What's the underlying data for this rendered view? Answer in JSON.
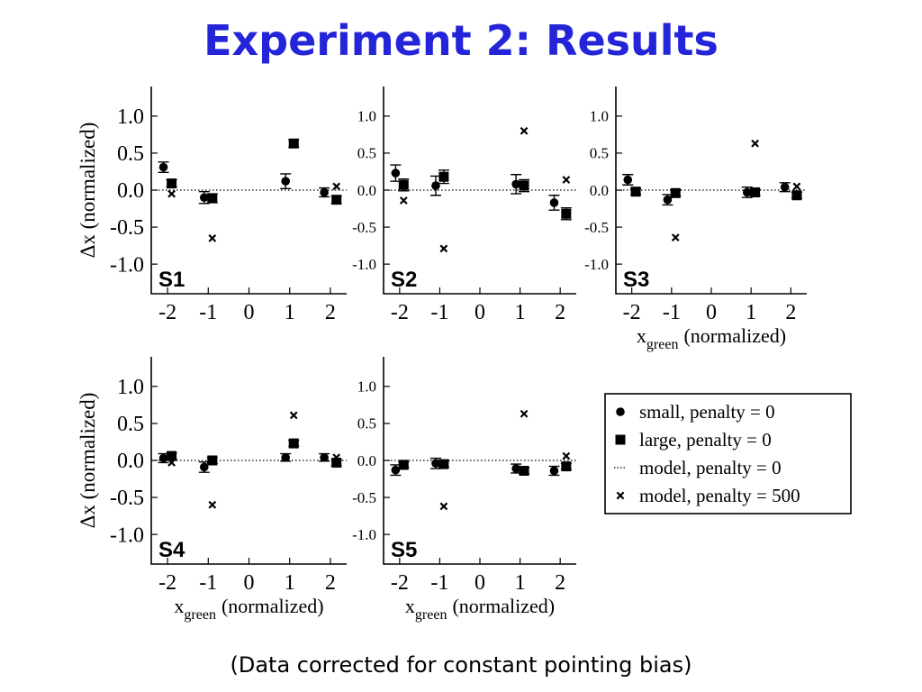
{
  "slide": {
    "title": "Experiment 2: Results",
    "caption": "(Data corrected for constant pointing bias)"
  },
  "colors": {
    "title": "#2424d8",
    "ink": "#000000",
    "background": "#ffffff"
  },
  "legend": {
    "placement": "right, second row",
    "entries": [
      {
        "marker": "circle",
        "label": "small, penalty = 0"
      },
      {
        "marker": "square",
        "label": "large, penalty = 0"
      },
      {
        "marker": "dotted-line",
        "label": "model, penalty = 0"
      },
      {
        "marker": "cross",
        "label": "model, penalty = 500"
      }
    ]
  },
  "chart_data": [
    {
      "type": "scatter",
      "panel_label": "S1",
      "ylabel": "Δx (normalized)",
      "xlabel": "",
      "xlim": [
        -2.4,
        2.4
      ],
      "ylim": [
        -1.4,
        1.4
      ],
      "xticks": [
        "-2",
        "-1",
        "0",
        "1",
        "2"
      ],
      "yticks": [
        "1.0",
        "0.5",
        "0.0",
        "-0.5",
        "-1.0"
      ],
      "series": [
        {
          "name": "small, penalty = 0",
          "marker": "circle",
          "x": [
            -2.1,
            -1.1,
            0.9,
            1.85
          ],
          "y": [
            0.31,
            -0.1,
            0.12,
            -0.03
          ],
          "err": [
            0.07,
            0.08,
            0.1,
            0.06
          ]
        },
        {
          "name": "large, penalty = 0",
          "marker": "square",
          "x": [
            -1.9,
            -0.9,
            1.1,
            2.15
          ],
          "y": [
            0.09,
            -0.11,
            0.63,
            -0.13
          ],
          "err": [
            0.05,
            0.06,
            0.05,
            0.05
          ]
        },
        {
          "name": "model, penalty = 0",
          "marker": "dotted-line",
          "y": 0.0
        },
        {
          "name": "model, penalty = 500",
          "marker": "cross",
          "x": [
            -1.9,
            -0.9,
            1.1,
            2.15
          ],
          "y": [
            -0.05,
            -0.65,
            0.64,
            0.05
          ]
        }
      ]
    },
    {
      "type": "scatter",
      "panel_label": "S2",
      "ylabel": "",
      "xlabel": "",
      "xlim": [
        -2.4,
        2.4
      ],
      "ylim": [
        -1.4,
        1.4
      ],
      "xticks": [
        "-2",
        "-1",
        "0",
        "1",
        "2"
      ],
      "yticks": [
        "1.0",
        "0.5",
        "0.0",
        "-0.5",
        "-1.0"
      ],
      "series": [
        {
          "name": "small, penalty = 0",
          "marker": "circle",
          "x": [
            -2.1,
            -1.1,
            0.9,
            1.85
          ],
          "y": [
            0.23,
            0.06,
            0.08,
            -0.17
          ],
          "err": [
            0.11,
            0.13,
            0.13,
            0.1
          ]
        },
        {
          "name": "large, penalty = 0",
          "marker": "square",
          "x": [
            -1.9,
            -0.9,
            1.1,
            2.15
          ],
          "y": [
            0.07,
            0.18,
            0.06,
            -0.32
          ],
          "err": [
            0.08,
            0.09,
            0.08,
            0.08
          ]
        },
        {
          "name": "model, penalty = 0",
          "marker": "dotted-line",
          "y": 0.0
        },
        {
          "name": "model, penalty = 500",
          "marker": "cross",
          "x": [
            -1.9,
            -0.9,
            1.1,
            2.15
          ],
          "y": [
            -0.14,
            -0.79,
            0.8,
            0.14
          ]
        }
      ]
    },
    {
      "type": "scatter",
      "panel_label": "S3",
      "ylabel": "",
      "xlabel": "xgreen (normalized)",
      "xlabel_main": "x",
      "xlabel_sub": "green",
      "xlabel_rest": "(normalized)",
      "xlim": [
        -2.4,
        2.4
      ],
      "ylim": [
        -1.4,
        1.4
      ],
      "xticks": [
        "-2",
        "-1",
        "0",
        "1",
        "2"
      ],
      "yticks": [
        "1.0",
        "0.5",
        "0.0",
        "-0.5",
        "-1.0"
      ],
      "series": [
        {
          "name": "small, penalty = 0",
          "marker": "circle",
          "x": [
            -2.1,
            -1.1,
            0.9,
            1.85
          ],
          "y": [
            0.14,
            -0.13,
            -0.03,
            0.04
          ],
          "err": [
            0.07,
            0.07,
            0.07,
            0.06
          ]
        },
        {
          "name": "large, penalty = 0",
          "marker": "square",
          "x": [
            -1.9,
            -0.9,
            1.1,
            2.15
          ],
          "y": [
            -0.02,
            -0.04,
            -0.03,
            -0.07
          ],
          "err": [
            0.04,
            0.04,
            0.04,
            0.04
          ]
        },
        {
          "name": "model, penalty = 0",
          "marker": "dotted-line",
          "y": 0.0
        },
        {
          "name": "model, penalty = 500",
          "marker": "cross",
          "x": [
            -1.9,
            -0.9,
            1.1,
            2.15
          ],
          "y": [
            -0.04,
            -0.64,
            0.63,
            0.05
          ]
        }
      ]
    },
    {
      "type": "scatter",
      "panel_label": "S4",
      "ylabel": "Δx (normalized)",
      "xlabel": "xgreen (normalized)",
      "xlabel_main": "x",
      "xlabel_sub": "green",
      "xlabel_rest": "(normalized)",
      "xlim": [
        -2.4,
        2.4
      ],
      "ylim": [
        -1.4,
        1.4
      ],
      "xticks": [
        "-2",
        "-1",
        "0",
        "1",
        "2"
      ],
      "yticks": [
        "1.0",
        "0.5",
        "0.0",
        "-0.5",
        "-1.0"
      ],
      "series": [
        {
          "name": "small, penalty = 0",
          "marker": "circle",
          "x": [
            -2.1,
            -1.1,
            0.9,
            1.85
          ],
          "y": [
            0.03,
            -0.09,
            0.04,
            0.04
          ],
          "err": [
            0.06,
            0.07,
            0.05,
            0.05
          ]
        },
        {
          "name": "large, penalty = 0",
          "marker": "square",
          "x": [
            -1.9,
            -0.9,
            1.1,
            2.15
          ],
          "y": [
            0.06,
            0.0,
            0.23,
            -0.03
          ],
          "err": [
            0.04,
            0.04,
            0.04,
            0.04
          ]
        },
        {
          "name": "model, penalty = 0",
          "marker": "dotted-line",
          "y": 0.0
        },
        {
          "name": "model, penalty = 500",
          "marker": "cross",
          "x": [
            -1.9,
            -0.9,
            1.1,
            2.15
          ],
          "y": [
            -0.03,
            -0.6,
            0.61,
            0.04
          ]
        }
      ]
    },
    {
      "type": "scatter",
      "panel_label": "S5",
      "ylabel": "",
      "xlabel": "xgreen (normalized)",
      "xlabel_main": "x",
      "xlabel_sub": "green",
      "xlabel_rest": "(normalized)",
      "xlim": [
        -2.4,
        2.4
      ],
      "ylim": [
        -1.4,
        1.4
      ],
      "xticks": [
        "-2",
        "-1",
        "0",
        "1",
        "2"
      ],
      "yticks": [
        "1.0",
        "0.5",
        "0.0",
        "-0.5",
        "-1.0"
      ],
      "series": [
        {
          "name": "small, penalty = 0",
          "marker": "circle",
          "x": [
            -2.1,
            -1.1,
            0.9,
            1.85
          ],
          "y": [
            -0.13,
            -0.04,
            -0.11,
            -0.14
          ],
          "err": [
            0.07,
            0.07,
            0.06,
            0.06
          ]
        },
        {
          "name": "large, penalty = 0",
          "marker": "square",
          "x": [
            -1.9,
            -0.9,
            1.1,
            2.15
          ],
          "y": [
            -0.06,
            -0.05,
            -0.14,
            -0.08
          ],
          "err": [
            0.04,
            0.04,
            0.04,
            0.04
          ]
        },
        {
          "name": "model, penalty = 0",
          "marker": "dotted-line",
          "y": 0.0
        },
        {
          "name": "model, penalty = 500",
          "marker": "cross",
          "x": [
            -1.9,
            -0.9,
            1.1,
            2.15
          ],
          "y": [
            -0.04,
            -0.62,
            0.63,
            0.06
          ]
        }
      ]
    }
  ]
}
